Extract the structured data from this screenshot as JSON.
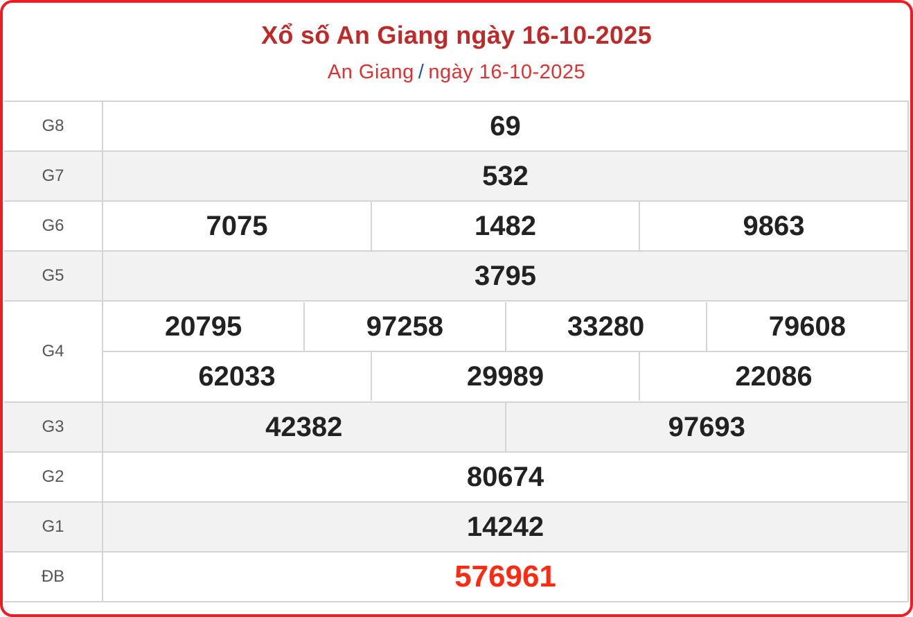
{
  "header": {
    "title": "Xổ số An Giang ngày 16-10-2025",
    "breadcrumb": {
      "province": "An Giang",
      "separator": "/",
      "date": "ngày 16-10-2025"
    }
  },
  "colors": {
    "border": "#ee1c25",
    "title": "#bd2a2a",
    "special": "#ff2a12"
  },
  "prizes": {
    "g8": {
      "label": "G8",
      "numbers": [
        "69"
      ]
    },
    "g7": {
      "label": "G7",
      "numbers": [
        "532"
      ]
    },
    "g6": {
      "label": "G6",
      "numbers": [
        "7075",
        "1482",
        "9863"
      ]
    },
    "g5": {
      "label": "G5",
      "numbers": [
        "3795"
      ]
    },
    "g4": {
      "label": "G4",
      "numbers": [
        "20795",
        "97258",
        "33280",
        "79608",
        "62033",
        "29989",
        "22086"
      ]
    },
    "g3": {
      "label": "G3",
      "numbers": [
        "42382",
        "97693"
      ]
    },
    "g2": {
      "label": "G2",
      "numbers": [
        "80674"
      ]
    },
    "g1": {
      "label": "G1",
      "numbers": [
        "14242"
      ]
    },
    "db": {
      "label": "ĐB",
      "numbers": [
        "576961"
      ]
    }
  }
}
